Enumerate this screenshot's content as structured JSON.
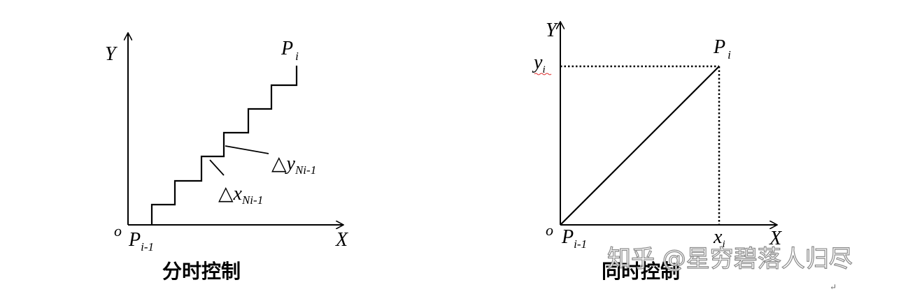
{
  "left": {
    "origin": "o",
    "x_axis": "X",
    "y_axis": "Y",
    "start_point": "P",
    "start_sub": "i-1",
    "end_point": "P",
    "end_sub": "i",
    "dy_sym": "△y",
    "dy_sub": "Ni-1",
    "dx_sym": "△x",
    "dx_sub": "Ni-1",
    "caption": "分时控制"
  },
  "right": {
    "origin": "o",
    "x_axis": "X",
    "y_axis": "Y",
    "start_point": "P",
    "start_sub": "i-1",
    "end_point": "P",
    "end_sub": "i",
    "y_tick": "y",
    "y_tick_sub": "i",
    "x_tick": "x",
    "x_tick_sub": "i",
    "caption": "同时控制"
  },
  "watermark": "知乎 @星穷碧落人归尽",
  "para_mark": "↵"
}
